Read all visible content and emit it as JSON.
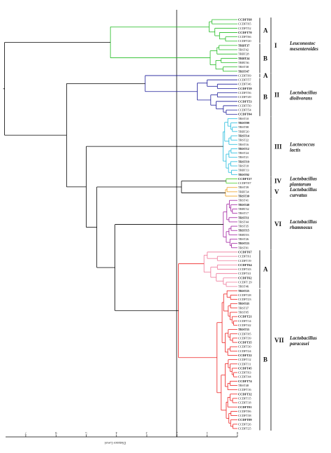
{
  "axis": {
    "label": "Distance Level",
    "ticks": [
      "7",
      "6",
      "5",
      "4",
      "3",
      "2",
      "1",
      "0"
    ]
  },
  "colors": {
    "green": "#22bb22",
    "navy": "#1a1a99",
    "cyan": "#22bbdd",
    "lime": "#44cc22",
    "orange": "#eea020",
    "magenta": "#a020a0",
    "pink": "#ee7799",
    "red": "#ee2222",
    "black": "#000000"
  },
  "groups": [
    {
      "id": "I",
      "color": "green",
      "species": [
        "Leuconostoc",
        "mesenteroides"
      ],
      "subgroups": [
        {
          "label": "A",
          "leaves": [
            "CCDFT68",
            "CCDFT65",
            "CCDFT52",
            "CCDFT70",
            "CCDFT66",
            "CCDFT20"
          ]
        },
        {
          "label": "B",
          "leaves": [
            "TRBT37",
            "TRST42",
            "TRBT28",
            "TRBT24",
            "TRBT36",
            "TRST38",
            "TRST47"
          ]
        }
      ]
    },
    {
      "id": "II",
      "color": "navy",
      "species": [
        "Lactobacillus",
        "diolivorans"
      ],
      "subgroups": [
        {
          "label": "A",
          "leaves": [
            "CCDFT69"
          ]
        },
        {
          "label": "B",
          "leaves": [
            "CCDFT57",
            "CCDFT46",
            "CCDFT59",
            "CCDFT56",
            "CCDFT49",
            "CCDFT53",
            "CCDFT50",
            "CCDFT54",
            "CCDFT04"
          ]
        }
      ]
    },
    {
      "id": "III",
      "color": "cyan",
      "species": [
        "Lactococcus",
        "lactis"
      ],
      "subgroups": [
        {
          "label": "",
          "leaves": [
            "TRST10",
            "TRST09",
            "TRST08",
            "TRBT20",
            "TRST14",
            "TRST22",
            "TRST16",
            "TRST12",
            "TRST24",
            "TRST21",
            "TRST19",
            "TRST18",
            "TRBT13",
            "TRST02"
          ]
        }
      ]
    },
    {
      "id": "IV",
      "color": "lime",
      "species": [
        "Lactobacillus",
        "plantarum"
      ],
      "subgroups": [
        {
          "label": "",
          "leaves": [
            "CCDFT27",
            "CCDFT07"
          ]
        }
      ]
    },
    {
      "id": "V",
      "color": "orange",
      "species": [
        "Lactobacillus",
        "curvatus"
      ],
      "subgroups": [
        {
          "label": "",
          "leaves": [
            "TRST39",
            "TRBT34",
            "TRST30"
          ]
        }
      ]
    },
    {
      "id": "VI",
      "color": "magenta",
      "species": [
        "Lactobacillus",
        "rhamnosus"
      ],
      "subgroups": [
        {
          "label": "",
          "leaves": [
            "TRST41",
            "TRST40",
            "TRBT32",
            "TRST17",
            "TRST11",
            "TRST44",
            "TRST35",
            "TRST15",
            "TRBT03",
            "TRST26",
            "TRST23",
            "TRST01"
          ]
        }
      ]
    },
    {
      "id": "VII",
      "color": "red",
      "species": [
        "Lactobacillus",
        "paracasei"
      ],
      "subgroups": [
        {
          "label": "A",
          "color": "pink",
          "leaves": [
            "CCDFT67",
            "CCDFT61",
            "CCDFT19",
            "CCDFT64",
            "CCDFT43",
            "CCDFT41",
            "CCDFT62",
            "CCDFT 29",
            "TRST46"
          ]
        },
        {
          "label": "B",
          "color": "red",
          "leaves": [
            "TRST25",
            "CCDFT28",
            "CCDFT23",
            "TRST43",
            "TRST37",
            "TRST05",
            "CCDFT21",
            "CCDFT14",
            "CCDFT42",
            "TRST33",
            "CCDFT05",
            "CCDFT39",
            "CCDFT35",
            "CCDFT30",
            "CCDFT24",
            "CCDFT22",
            "CCDFT12",
            "CCDFT11",
            "CCDFT45",
            "CCDFT63",
            "CCDFT44",
            "CCDFT74",
            "TRST48",
            "CCDFT16",
            "CCDFT32",
            "CCDFT15",
            "CCDFT18",
            "CCDFT01",
            "CCDFT06",
            "CCDFT38",
            "CCDFT09",
            "CCDFT26",
            "CCDFT25"
          ]
        }
      ]
    }
  ]
}
